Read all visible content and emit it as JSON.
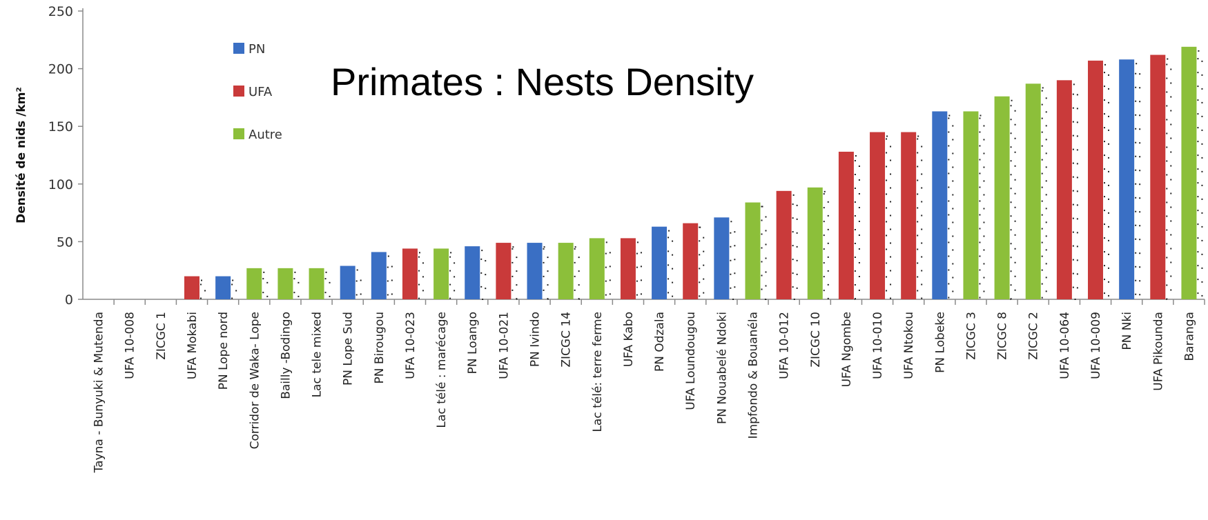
{
  "chart_data": {
    "type": "bar",
    "title": "Primates : Nests Density",
    "ylabel": "Densité de nids /km²",
    "xlabel": "",
    "ylim": [
      0,
      250
    ],
    "yticks": [
      0,
      50,
      100,
      150,
      200,
      250
    ],
    "grid": false,
    "legend_position": "top-left",
    "legend": [
      {
        "name": "PN",
        "color": "#3a6fc4"
      },
      {
        "name": "UFA",
        "color": "#c93a3a"
      },
      {
        "name": "Autre",
        "color": "#8cbf3a"
      }
    ],
    "categories": [
      "Tayna - Bunyuki & Mutenda",
      "UFA 10-008",
      "ZICGC 1",
      "UFA Mokabi",
      "PN Lope nord",
      "Corridor de Waka- Lope",
      "Bailly -Bodingo",
      "Lac tele mixed",
      "PN Lope Sud",
      "PN Birougou",
      "UFA 10-023",
      "Lac télé : marécage",
      "PN Loango",
      "UFA 10-021",
      "PN Ivindo",
      "ZICGC 14",
      "Lac télé: terre ferme",
      "UFA Kabo",
      "PN Odzala",
      "UFA Loundougou",
      "PN Nouabelé Ndoki",
      "Impfondo & Bouanéla",
      "UFA 10-012",
      "ZICGC 10",
      "UFA Ngombe",
      "UFA 10-010",
      "UFA Ntokou",
      "PN Lobeke",
      "ZICGC 3",
      "ZICGC 8",
      "ZICGC 2",
      "UFA 10-064",
      "UFA 10-009",
      "PN Nki",
      "UFA Pikounda",
      "Baranga"
    ],
    "groups": [
      "Autre",
      "UFA",
      "Autre",
      "UFA",
      "PN",
      "Autre",
      "Autre",
      "Autre",
      "PN",
      "PN",
      "UFA",
      "Autre",
      "PN",
      "UFA",
      "PN",
      "Autre",
      "Autre",
      "UFA",
      "PN",
      "UFA",
      "PN",
      "Autre",
      "UFA",
      "Autre",
      "UFA",
      "UFA",
      "UFA",
      "PN",
      "Autre",
      "Autre",
      "Autre",
      "UFA",
      "UFA",
      "PN",
      "UFA",
      "Autre"
    ],
    "values": [
      0,
      0,
      0,
      20,
      20,
      27,
      27,
      27,
      29,
      41,
      44,
      44,
      46,
      49,
      49,
      49,
      53,
      53,
      63,
      66,
      71,
      84,
      94,
      97,
      128,
      145,
      145,
      163,
      163,
      176,
      187,
      190,
      207,
      208,
      212,
      219
    ]
  }
}
